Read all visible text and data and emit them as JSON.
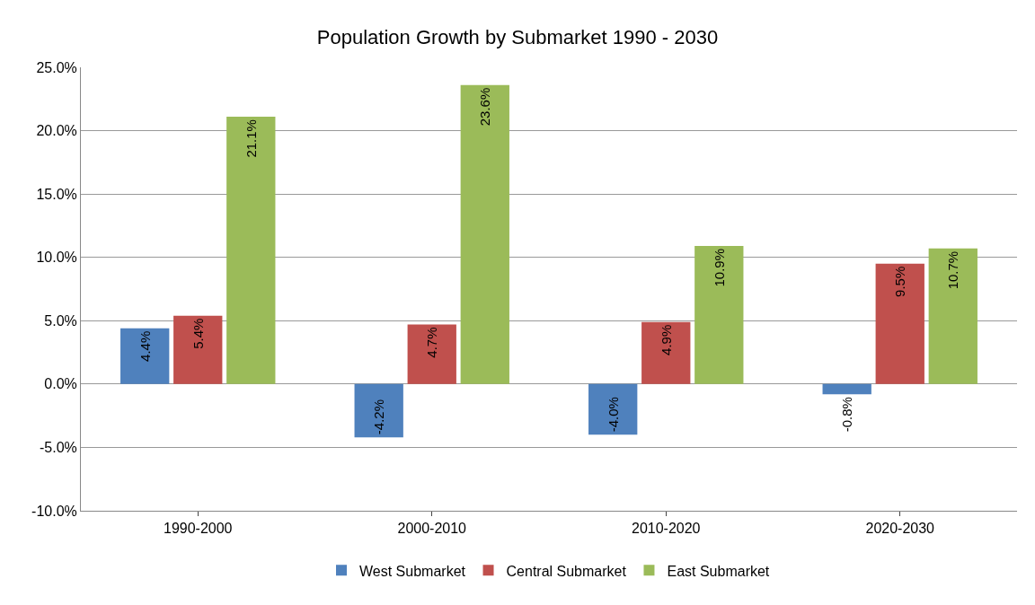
{
  "chart_data": {
    "type": "bar",
    "title": "Population Growth by Submarket 1990 - 2030",
    "categories": [
      "1990-2000",
      "2000-2010",
      "2010-2020",
      "2020-2030"
    ],
    "series": [
      {
        "name": "West Submarket",
        "color": "#4f81bd",
        "values": [
          4.4,
          -4.2,
          -4.0,
          -0.8
        ],
        "value_labels": [
          "4.4%",
          "-4.2%",
          "-4.0%",
          "-0.8%"
        ]
      },
      {
        "name": "Central Submarket",
        "color": "#c0504d",
        "values": [
          5.4,
          4.7,
          4.9,
          9.5
        ],
        "value_labels": [
          "5.4%",
          "4.7%",
          "4.9%",
          "9.5%"
        ]
      },
      {
        "name": "East Submarket",
        "color": "#9bbb59",
        "values": [
          21.1,
          23.6,
          10.9,
          10.7
        ],
        "value_labels": [
          "21.1%",
          "23.6%",
          "10.9%",
          "10.7%"
        ]
      }
    ],
    "ylim": [
      -10,
      25
    ],
    "yticks": [
      {
        "value": -10,
        "label": "-10.0%"
      },
      {
        "value": -5,
        "label": "-5.0%"
      },
      {
        "value": 0,
        "label": "0.0%"
      },
      {
        "value": 5,
        "label": "5.0%"
      },
      {
        "value": 10,
        "label": "10.0%"
      },
      {
        "value": 15,
        "label": "15.0%"
      },
      {
        "value": 20,
        "label": "20.0%"
      },
      {
        "value": 25,
        "label": "25.0%"
      }
    ],
    "grid": "y",
    "legend": "bottom"
  }
}
